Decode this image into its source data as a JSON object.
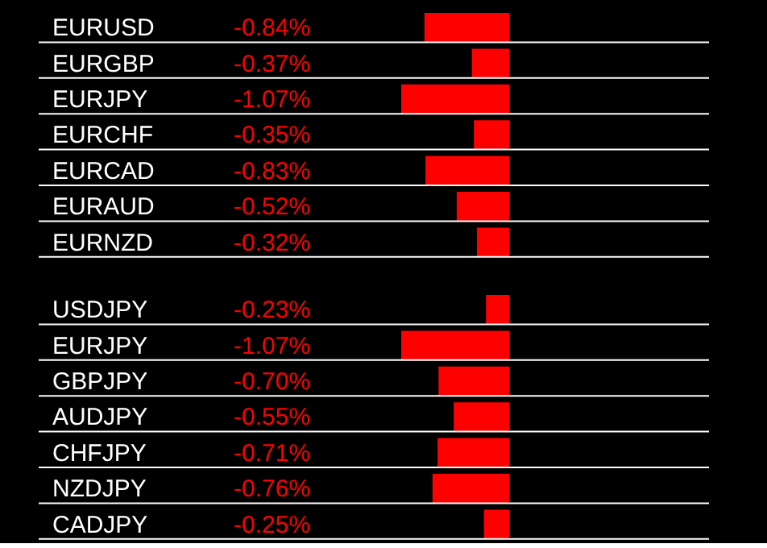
{
  "chart_data": [
    {
      "type": "bar",
      "orientation": "horizontal",
      "categories": [
        "EURUSD",
        "EURGBP",
        "EURJPY",
        "EURCHF",
        "EURCAD",
        "EURAUD",
        "EURNZD"
      ],
      "values": [
        -0.84,
        -0.37,
        -1.07,
        -0.35,
        -0.83,
        -0.52,
        -0.32
      ],
      "value_labels": [
        "-0.84%",
        "-0.37%",
        "-1.07%",
        "-0.35%",
        "-0.83%",
        "-0.52%",
        "-0.32%"
      ],
      "color": "#ff0000",
      "grid": true,
      "tick_labels": "y"
    },
    {
      "type": "bar",
      "orientation": "horizontal",
      "categories": [
        "USDJPY",
        "EURJPY",
        "GBPJPY",
        "AUDJPY",
        "CHFJPY",
        "NZDJPY",
        "CADJPY"
      ],
      "values": [
        -0.23,
        -1.07,
        -0.7,
        -0.55,
        -0.71,
        -0.76,
        -0.25
      ],
      "value_labels": [
        "-0.23%",
        "-1.07%",
        "-0.70%",
        "-0.55%",
        "-0.71%",
        "-0.76%",
        "-0.25%"
      ],
      "color": "#ff0000",
      "grid": true,
      "tick_labels": "y"
    }
  ]
}
